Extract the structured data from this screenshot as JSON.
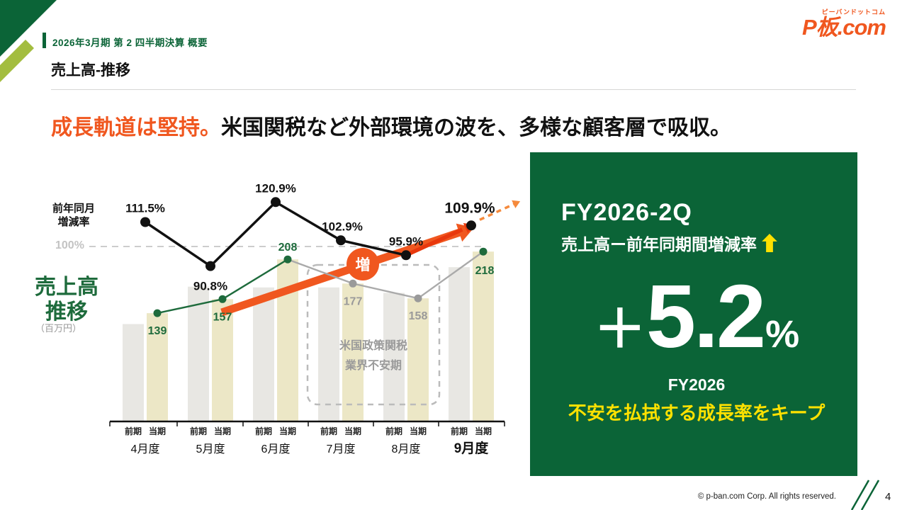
{
  "header": {
    "eyebrow": "2026年3月期 第 2 四半期決算 概要",
    "title": "売上高-推移"
  },
  "logo": {
    "main": "P板.com",
    "sub": "ピーバンドットコム"
  },
  "headline": {
    "accent": "成長軌道は堅持。",
    "rest": "米国関税など外部環境の波を、多様な顧客層で吸収。"
  },
  "chart_labels": {
    "pct_axis": "前年同月\n増減率",
    "baseline": "100%",
    "sales_title": "売上高\n推移",
    "sales_unit": "（百万円）"
  },
  "chart_data": {
    "type": "bar+line",
    "title": "売上高推移（百万円）",
    "categories": [
      "4月度",
      "5月度",
      "6月度",
      "7月度",
      "8月度",
      "9月度"
    ],
    "bar_series": [
      {
        "name": "前期",
        "values": [
          125,
          173,
          172,
          172,
          165,
          198
        ],
        "color": "#e8e7e3"
      },
      {
        "name": "当期",
        "values": [
          139,
          157,
          208,
          177,
          158,
          218
        ],
        "color": "#ece7c6"
      }
    ],
    "sales_line": {
      "values": [
        139,
        157,
        208,
        177,
        158,
        218
      ],
      "labels": [
        "139",
        "157",
        "208",
        "177",
        "158",
        "218"
      ],
      "point_colors": [
        "green",
        "green",
        "green",
        "gray",
        "gray",
        "green"
      ]
    },
    "pct_line": {
      "name": "前年同月増減率",
      "values": [
        111.5,
        90.8,
        120.9,
        102.9,
        95.9,
        109.9
      ],
      "labels": [
        "111.5%",
        "90.8%",
        "120.9%",
        "102.9%",
        "95.9%",
        "109.9%"
      ],
      "baseline": 100
    },
    "annotation_box": "米国政策関税\n業界不安期",
    "increase_badge": "増",
    "ylim_bars": [
      0,
      240
    ],
    "ylim_pct": [
      80,
      130
    ],
    "legend_position": "x-axis pairs (前期/当期) under each month"
  },
  "panel": {
    "title": "FY2026-2Q",
    "subtitle": "売上高ー前年同期間増減率",
    "value_sign": "＋",
    "value": "5.2",
    "value_unit": "%",
    "fiscal_year": "FY2026",
    "note": "不安を払拭する成長率をキープ"
  },
  "footer": {
    "copyright": "© p-ban.com Corp. All rights reserved.",
    "page_number": "4"
  },
  "colors": {
    "brand_green": "#0b6437",
    "line_green": "#1e6b3c",
    "accent_orange": "#f0571f",
    "red_arrow": "#e8380d",
    "highlight_yellow": "#ffe100",
    "light_stripe_green": "#a3bd3f"
  }
}
